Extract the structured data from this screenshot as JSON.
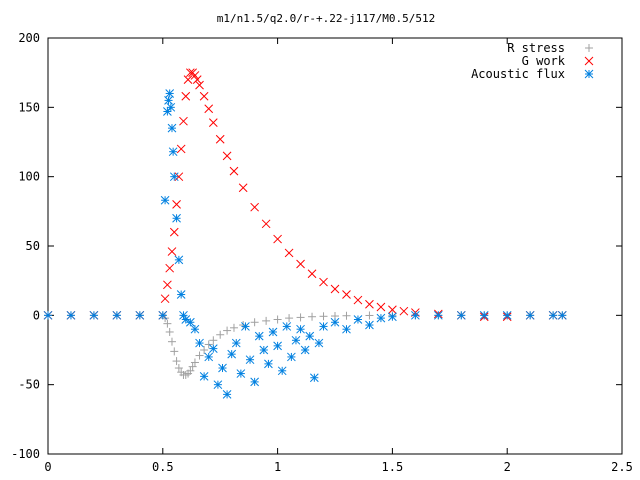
{
  "chart_data": {
    "type": "scatter",
    "title": "m1/n1.5/q2.0/r-+.22-j117/M0.5/512",
    "xlabel": "",
    "ylabel": "",
    "xlim": [
      0,
      2.5
    ],
    "ylim": [
      -100,
      200
    ],
    "x_ticks": [
      "0",
      "0.5",
      "1",
      "1.5",
      "2",
      "2.5"
    ],
    "y_ticks": [
      "200",
      "150",
      "100",
      "50",
      "0",
      "-50",
      "-100"
    ],
    "grid": false,
    "legend_position": "top-right",
    "series": [
      {
        "name": "R stress",
        "marker": "+",
        "color": "#a0a0a0",
        "x": [
          0.0,
          0.1,
          0.2,
          0.3,
          0.4,
          0.5,
          0.51,
          0.52,
          0.53,
          0.54,
          0.55,
          0.56,
          0.57,
          0.58,
          0.59,
          0.6,
          0.61,
          0.62,
          0.63,
          0.64,
          0.66,
          0.68,
          0.7,
          0.72,
          0.75,
          0.78,
          0.81,
          0.85,
          0.9,
          0.95,
          1.0,
          1.05,
          1.1,
          1.15,
          1.2,
          1.25,
          1.3,
          1.4,
          1.5,
          1.6,
          1.7,
          1.8,
          1.9,
          2.0,
          2.1,
          2.2,
          2.24
        ],
        "y": [
          0,
          0,
          0,
          0,
          0,
          0,
          -2,
          -6,
          -12,
          -19,
          -26,
          -33,
          -38,
          -41,
          -43,
          -43,
          -42,
          -40,
          -37,
          -34,
          -29,
          -25,
          -21,
          -18,
          -14,
          -11,
          -9,
          -7,
          -5,
          -4,
          -3,
          -2,
          -1.5,
          -1,
          -0.7,
          -0.5,
          -0.3,
          -0.1,
          0,
          0,
          0,
          0,
          0,
          0,
          0,
          0,
          0
        ]
      },
      {
        "name": "G work",
        "marker": "x",
        "color": "#ff0000",
        "x": [
          0.0,
          0.1,
          0.2,
          0.3,
          0.4,
          0.5,
          0.51,
          0.52,
          0.53,
          0.54,
          0.55,
          0.56,
          0.57,
          0.58,
          0.59,
          0.6,
          0.61,
          0.62,
          0.63,
          0.64,
          0.65,
          0.66,
          0.68,
          0.7,
          0.72,
          0.75,
          0.78,
          0.81,
          0.85,
          0.9,
          0.95,
          1.0,
          1.05,
          1.1,
          1.15,
          1.2,
          1.25,
          1.3,
          1.35,
          1.4,
          1.45,
          1.5,
          1.55,
          1.6,
          1.7,
          1.8,
          1.9,
          2.0,
          2.1,
          2.2,
          2.24
        ],
        "y": [
          0,
          0,
          0,
          0,
          0,
          0,
          12,
          22,
          34,
          46,
          60,
          80,
          100,
          120,
          140,
          158,
          170,
          175,
          175,
          173,
          170,
          166,
          158,
          149,
          139,
          127,
          115,
          104,
          92,
          78,
          66,
          55,
          45,
          37,
          30,
          24,
          19,
          15,
          11,
          8,
          6,
          4,
          3,
          2,
          1,
          0,
          -1,
          -1,
          0,
          0,
          0
        ]
      },
      {
        "name": "Acoustic flux",
        "marker": "*",
        "color": "#0080e0",
        "x": [
          0.0,
          0.1,
          0.2,
          0.3,
          0.4,
          0.5,
          0.51,
          0.52,
          0.525,
          0.53,
          0.535,
          0.54,
          0.545,
          0.55,
          0.56,
          0.57,
          0.58,
          0.59,
          0.6,
          0.62,
          0.64,
          0.66,
          0.68,
          0.7,
          0.72,
          0.74,
          0.76,
          0.78,
          0.8,
          0.82,
          0.84,
          0.86,
          0.88,
          0.9,
          0.92,
          0.94,
          0.96,
          0.98,
          1.0,
          1.02,
          1.04,
          1.06,
          1.08,
          1.1,
          1.12,
          1.14,
          1.16,
          1.18,
          1.2,
          1.25,
          1.3,
          1.35,
          1.4,
          1.45,
          1.5,
          1.6,
          1.7,
          1.8,
          1.9,
          2.0,
          2.1,
          2.2,
          2.24
        ],
        "y": [
          0,
          0,
          0,
          0,
          0,
          0,
          83,
          147,
          155,
          160,
          150,
          135,
          118,
          100,
          70,
          40,
          15,
          0,
          -3,
          -5,
          -10,
          -20,
          -44,
          -30,
          -24,
          -50,
          -38,
          -57,
          -28,
          -20,
          -42,
          -8,
          -32,
          -48,
          -15,
          -25,
          -35,
          -12,
          -22,
          -40,
          -8,
          -30,
          -18,
          -10,
          -25,
          -15,
          -45,
          -20,
          -8,
          -5,
          -10,
          -3,
          -7,
          -2,
          -1,
          0,
          0,
          0,
          0,
          0,
          0,
          0,
          0
        ]
      }
    ]
  }
}
